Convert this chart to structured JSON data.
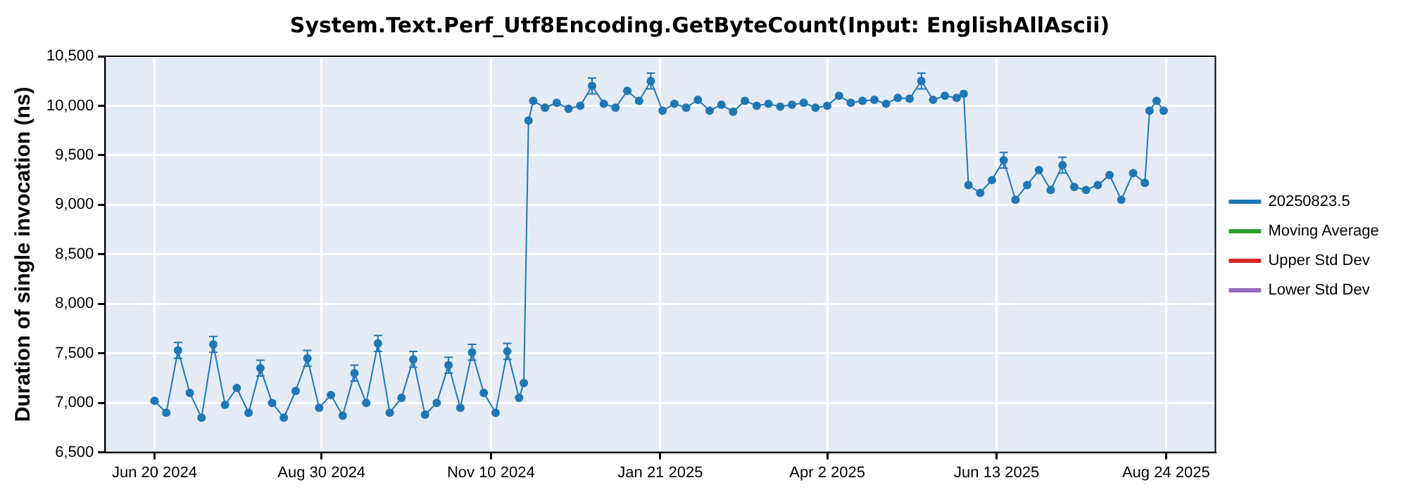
{
  "chart_data": {
    "type": "line",
    "title": "System.Text.Perf_Utf8Encoding.GetByteCount(Input: EnglishAllAscii)",
    "ylabel": "Duration of single invocation (ns)",
    "x": [
      "2024-06-20",
      "2024-06-25",
      "2024-06-30",
      "2024-07-05",
      "2024-07-10",
      "2024-07-15",
      "2024-07-20",
      "2024-07-25",
      "2024-07-30",
      "2024-08-04",
      "2024-08-09",
      "2024-08-14",
      "2024-08-19",
      "2024-08-24",
      "2024-08-29",
      "2024-09-03",
      "2024-09-08",
      "2024-09-13",
      "2024-09-18",
      "2024-09-23",
      "2024-09-28",
      "2024-10-03",
      "2024-10-08",
      "2024-10-13",
      "2024-10-18",
      "2024-10-23",
      "2024-10-28",
      "2024-11-02",
      "2024-11-07",
      "2024-11-12",
      "2024-11-17",
      "2024-11-22",
      "2024-11-24",
      "2024-11-26",
      "2024-11-28",
      "2024-12-03",
      "2024-12-08",
      "2024-12-13",
      "2024-12-18",
      "2024-12-23",
      "2024-12-28",
      "2025-01-02",
      "2025-01-07",
      "2025-01-12",
      "2025-01-17",
      "2025-01-22",
      "2025-01-27",
      "2025-02-01",
      "2025-02-06",
      "2025-02-11",
      "2025-02-16",
      "2025-02-21",
      "2025-02-26",
      "2025-03-03",
      "2025-03-08",
      "2025-03-13",
      "2025-03-18",
      "2025-03-23",
      "2025-03-28",
      "2025-04-02",
      "2025-04-07",
      "2025-04-12",
      "2025-04-17",
      "2025-04-22",
      "2025-04-27",
      "2025-05-02",
      "2025-05-07",
      "2025-05-12",
      "2025-05-17",
      "2025-05-22",
      "2025-05-27",
      "2025-05-30",
      "2025-06-01",
      "2025-06-06",
      "2025-06-11",
      "2025-06-16",
      "2025-06-21",
      "2025-06-26",
      "2025-07-01",
      "2025-07-06",
      "2025-07-11",
      "2025-07-16",
      "2025-07-21",
      "2025-07-26",
      "2025-07-31",
      "2025-08-05",
      "2025-08-10",
      "2025-08-15",
      "2025-08-17",
      "2025-08-20",
      "2025-08-23"
    ],
    "series": [
      {
        "name": "20250823.5",
        "color": "#1f77b4",
        "values": [
          7020,
          6900,
          7530,
          7100,
          6850,
          7590,
          6980,
          7150,
          6900,
          7350,
          7000,
          6850,
          7120,
          7450,
          6950,
          7080,
          6870,
          7300,
          7000,
          7600,
          6900,
          7050,
          7440,
          6880,
          7000,
          7380,
          6950,
          7510,
          7100,
          6900,
          7520,
          7050,
          7200,
          9850,
          10050,
          9980,
          10030,
          9970,
          10000,
          10200,
          10020,
          9980,
          10150,
          10050,
          10250,
          9950,
          10020,
          9980,
          10060,
          9950,
          10010,
          9940,
          10050,
          10000,
          10020,
          9990,
          10010,
          10030,
          9980,
          10000,
          10100,
          10030,
          10050,
          10060,
          10020,
          10080,
          10070,
          10250,
          10060,
          10100,
          10080,
          10120,
          9200,
          9120,
          9250,
          9450,
          9050,
          9200,
          9350,
          9150,
          9400,
          9180,
          9150,
          9200,
          9300,
          9050,
          9320,
          9220,
          9950,
          10050,
          9950
        ],
        "errors": [
          null,
          null,
          80,
          null,
          null,
          80,
          null,
          null,
          null,
          80,
          null,
          null,
          null,
          80,
          null,
          null,
          null,
          80,
          null,
          80,
          null,
          null,
          80,
          null,
          null,
          80,
          null,
          80,
          null,
          null,
          80,
          null,
          null,
          null,
          null,
          null,
          null,
          null,
          null,
          80,
          null,
          null,
          null,
          null,
          80,
          null,
          null,
          null,
          null,
          null,
          null,
          null,
          null,
          null,
          null,
          null,
          null,
          null,
          null,
          null,
          null,
          null,
          null,
          null,
          null,
          null,
          null,
          80,
          null,
          null,
          null,
          null,
          null,
          null,
          null,
          80,
          null,
          null,
          null,
          null,
          80,
          null,
          null,
          null,
          null,
          null,
          null,
          null,
          null,
          null,
          null
        ]
      },
      {
        "name": "Moving Average",
        "color": "#2ca02c",
        "values": [
          null,
          null,
          null,
          null,
          null,
          null,
          null,
          null,
          null,
          null,
          null,
          null,
          null,
          null,
          null,
          null,
          null,
          null,
          null,
          null,
          null,
          null,
          null,
          null,
          null,
          null,
          null,
          null,
          null,
          null,
          null,
          null,
          null,
          null,
          null,
          null,
          null,
          null,
          null,
          null,
          null,
          null,
          null,
          null,
          null,
          null,
          null,
          null,
          null,
          null,
          null,
          null,
          null,
          null,
          null,
          null,
          null,
          null,
          null,
          null,
          null,
          null,
          null,
          null,
          null,
          null,
          null,
          null,
          null,
          null,
          null,
          null,
          null,
          null,
          null,
          null,
          null,
          null,
          null,
          null,
          null,
          null,
          null,
          null,
          null,
          null,
          null,
          null,
          null,
          null,
          null
        ]
      },
      {
        "name": "Upper Std Dev",
        "color": "#d62728",
        "values": [
          null,
          null,
          null,
          null,
          null,
          null,
          null,
          null,
          null,
          null,
          null,
          null,
          null,
          null,
          null,
          null,
          null,
          null,
          null,
          null,
          null,
          null,
          null,
          null,
          null,
          null,
          null,
          null,
          null,
          null,
          null,
          null,
          null,
          null,
          null,
          null,
          null,
          null,
          null,
          null,
          null,
          null,
          null,
          null,
          null,
          null,
          null,
          null,
          null,
          null,
          null,
          null,
          null,
          null,
          null,
          null,
          null,
          null,
          null,
          null,
          null,
          null,
          null,
          null,
          null,
          null,
          null,
          null,
          null,
          null,
          null,
          null,
          null,
          null,
          null,
          null,
          null,
          null,
          null,
          null,
          null,
          null,
          null,
          null,
          null,
          null,
          null,
          null,
          null,
          null,
          null
        ]
      },
      {
        "name": "Lower Std Dev",
        "color": "#9467bd",
        "values": [
          null,
          null,
          null,
          null,
          null,
          null,
          null,
          null,
          null,
          null,
          null,
          null,
          null,
          null,
          null,
          null,
          null,
          null,
          null,
          null,
          null,
          null,
          null,
          null,
          null,
          null,
          null,
          null,
          null,
          null,
          null,
          null,
          null,
          null,
          null,
          null,
          null,
          null,
          null,
          null,
          null,
          null,
          null,
          null,
          null,
          null,
          null,
          null,
          null,
          null,
          null,
          null,
          null,
          null,
          null,
          null,
          null,
          null,
          null,
          null,
          null,
          null,
          null,
          null,
          null,
          null,
          null,
          null,
          null,
          null,
          null,
          null,
          null,
          null,
          null,
          null,
          null,
          null,
          null,
          null,
          null,
          null,
          null,
          null,
          null,
          null,
          null,
          null,
          null,
          null,
          null
        ]
      }
    ],
    "xlim": [
      "2024-05-30",
      "2025-09-14"
    ],
    "xticks": [
      {
        "value": "2024-06-20",
        "label": "Jun 20 2024"
      },
      {
        "value": "2024-08-30",
        "label": "Aug 30 2024"
      },
      {
        "value": "2024-11-10",
        "label": "Nov 10 2024"
      },
      {
        "value": "2025-01-21",
        "label": "Jan 21 2025"
      },
      {
        "value": "2025-04-02",
        "label": "Apr 2 2025"
      },
      {
        "value": "2025-06-13",
        "label": "Jun 13 2025"
      },
      {
        "value": "2025-08-24",
        "label": "Aug 24 2025"
      }
    ],
    "ylim": [
      6500,
      10500
    ],
    "yticks": [
      {
        "value": 6500,
        "label": "6,500"
      },
      {
        "value": 7000,
        "label": "7,000"
      },
      {
        "value": 7500,
        "label": "7,500"
      },
      {
        "value": 8000,
        "label": "8,000"
      },
      {
        "value": 8500,
        "label": "8,500"
      },
      {
        "value": 9000,
        "label": "9,000"
      },
      {
        "value": 9500,
        "label": "9,500"
      },
      {
        "value": 10000,
        "label": "10,000"
      },
      {
        "value": 10500,
        "label": "10,500"
      }
    ],
    "grid": true,
    "legend": "right",
    "marker": "circle",
    "line_style": "solid"
  }
}
